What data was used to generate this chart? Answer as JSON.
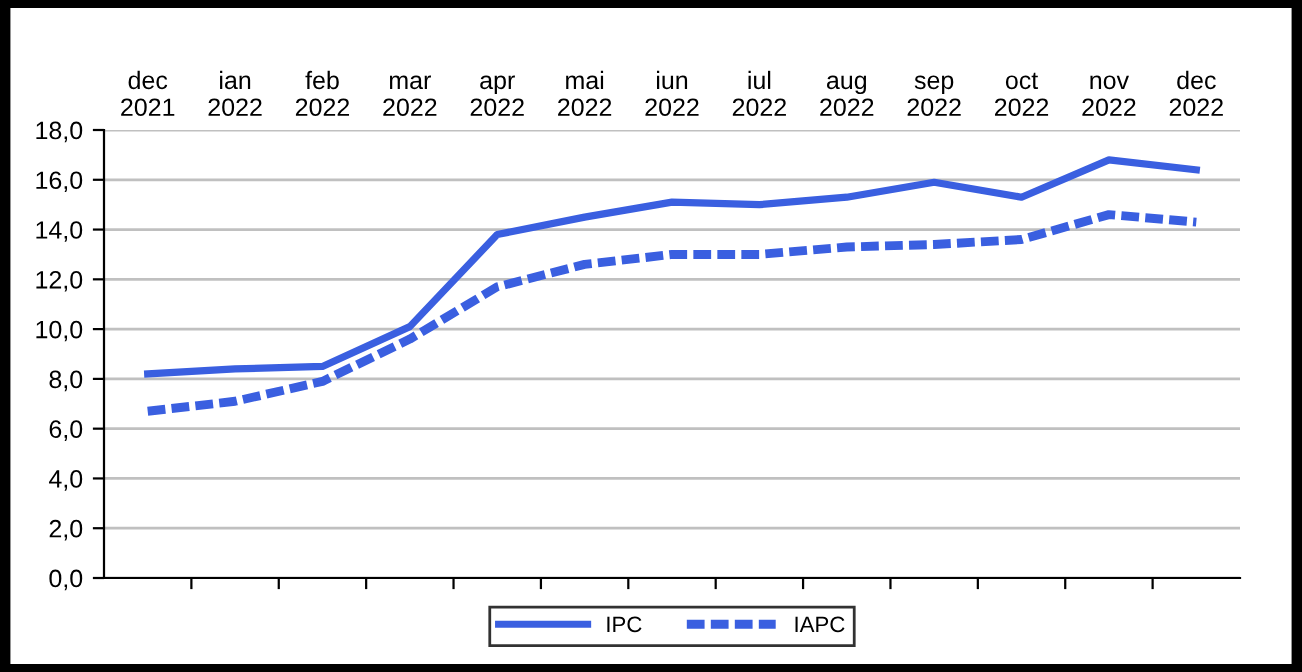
{
  "chart_data": {
    "type": "line",
    "categories": [
      "dec\n2021",
      "ian\n2022",
      "feb\n2022",
      "mar\n2022",
      "apr\n2022",
      "mai\n2022",
      "iun\n2022",
      "iul\n2022",
      "aug\n2022",
      "sep\n2022",
      "oct\n2022",
      "nov\n2022",
      "dec\n2022"
    ],
    "series": [
      {
        "name": "IPC",
        "color": "#3a5fe0",
        "line_style": "solid",
        "values": [
          8.2,
          8.4,
          8.5,
          10.1,
          13.8,
          14.5,
          15.1,
          15.0,
          15.3,
          15.9,
          15.3,
          16.8,
          16.4
        ]
      },
      {
        "name": "IAPC",
        "color": "#3a5fe0",
        "line_style": "dotted",
        "values": [
          6.7,
          7.1,
          7.9,
          9.6,
          11.7,
          12.6,
          13.0,
          13.0,
          13.3,
          13.4,
          13.6,
          14.6,
          14.3
        ]
      }
    ],
    "ylim": [
      0,
      18
    ],
    "yticks": [
      {
        "value": 0,
        "label": "0,0"
      },
      {
        "value": 2,
        "label": "2,0"
      },
      {
        "value": 4,
        "label": "4,0"
      },
      {
        "value": 6,
        "label": "6,0"
      },
      {
        "value": 8,
        "label": "8,0"
      },
      {
        "value": 10,
        "label": "10,0"
      },
      {
        "value": 12,
        "label": "12,0"
      },
      {
        "value": 14,
        "label": "14,0"
      },
      {
        "value": 16,
        "label": "16,0"
      },
      {
        "value": 18,
        "label": "18,0"
      }
    ],
    "grid": "y",
    "legend": "bottom",
    "marker": "none"
  }
}
